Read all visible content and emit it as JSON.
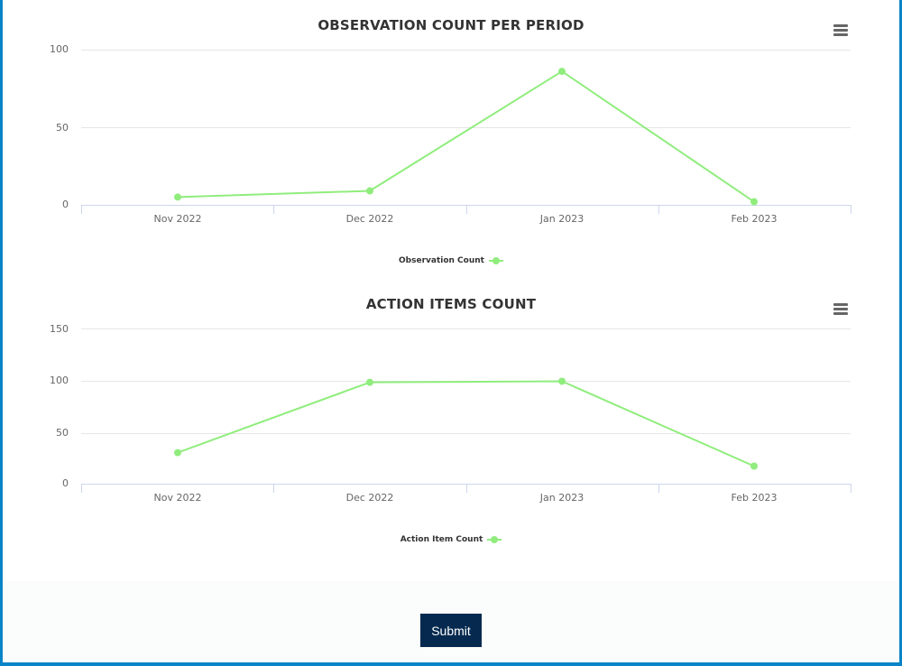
{
  "chart_data": [
    {
      "type": "line",
      "title": "OBSERVATION COUNT PER PERIOD",
      "categories": [
        "Nov 2022",
        "Dec 2022",
        "Jan 2023",
        "Feb 2023"
      ],
      "series": [
        {
          "name": "Observation Count",
          "color": "#90ed7d",
          "values": [
            5,
            9,
            86,
            2
          ]
        }
      ],
      "xlabel": "",
      "ylabel": "",
      "yticks": [
        0,
        50,
        100
      ],
      "ylim": [
        0,
        100
      ],
      "grid": true,
      "legend_position": "bottom-center"
    },
    {
      "type": "line",
      "title": "ACTION ITEMS COUNT",
      "categories": [
        "Nov 2022",
        "Dec 2022",
        "Jan 2023",
        "Feb 2023"
      ],
      "series": [
        {
          "name": "Action Item Count",
          "color": "#90ed7d",
          "values": [
            30,
            98,
            99,
            17
          ]
        }
      ],
      "xlabel": "",
      "ylabel": "",
      "yticks": [
        0,
        50,
        100,
        150
      ],
      "ylim": [
        0,
        150
      ],
      "grid": true,
      "legend_position": "bottom-center"
    }
  ],
  "charts": {
    "observation": {
      "title": "OBSERVATION COUNT PER PERIOD",
      "menu_icon": "hamburger-menu-icon",
      "yticks": [
        "100",
        "50",
        "0"
      ],
      "xlabels": [
        "Nov 2022",
        "Dec 2022",
        "Jan 2023",
        "Feb 2023"
      ],
      "legend": "Observation Count"
    },
    "action": {
      "title": "ACTION ITEMS COUNT",
      "menu_icon": "hamburger-menu-icon",
      "yticks": [
        "150",
        "100",
        "50",
        "0"
      ],
      "xlabels": [
        "Nov 2022",
        "Dec 2022",
        "Jan 2023",
        "Feb 2023"
      ],
      "legend": "Action Item Count"
    }
  },
  "form": {
    "submit_label": "Submit"
  },
  "colors": {
    "series": "#90ed7d",
    "frame_border": "#0a84c8",
    "submit_bg": "#062a4f"
  }
}
